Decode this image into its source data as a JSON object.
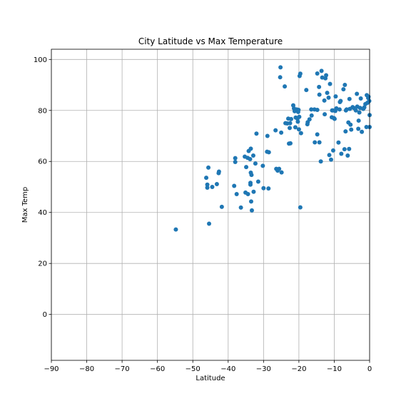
{
  "chart_data": {
    "type": "scatter",
    "title": "City Latitude vs Max Temperature",
    "xlabel": "Latitude",
    "ylabel": "Max Temp",
    "xlim": [
      -90,
      0
    ],
    "ylim": [
      -18,
      104
    ],
    "xticks": [
      -90,
      -80,
      -70,
      -60,
      -50,
      -40,
      -30,
      -20,
      -10,
      0
    ],
    "yticks": [
      0,
      20,
      40,
      60,
      80,
      100
    ],
    "xtick_labels": [
      "−90",
      "−80",
      "−70",
      "−60",
      "−50",
      "−40",
      "−30",
      "−20",
      "−10",
      "0"
    ],
    "ytick_labels": [
      "0",
      "20",
      "40",
      "60",
      "80",
      "100"
    ],
    "grid": true,
    "marker_color": "#1f77b4",
    "series": [
      {
        "points": [
          [
            -54.8,
            33.3
          ],
          [
            -46.2,
            53.6
          ],
          [
            -45.9,
            50.9
          ],
          [
            -45.9,
            49.7
          ],
          [
            -45.6,
            57.6
          ],
          [
            -45.4,
            35.6
          ],
          [
            -44.5,
            50.0
          ],
          [
            -43.2,
            51.1
          ],
          [
            -42.7,
            55.4
          ],
          [
            -42.6,
            56.0
          ],
          [
            -41.8,
            42.2
          ],
          [
            -38.3,
            50.4
          ],
          [
            -38.0,
            59.8
          ],
          [
            -38.0,
            61.3
          ],
          [
            -37.6,
            47.2
          ],
          [
            -36.4,
            41.9
          ],
          [
            -35.3,
            61.9
          ],
          [
            -35.1,
            47.8
          ],
          [
            -34.9,
            57.8
          ],
          [
            -34.5,
            61.4
          ],
          [
            -34.4,
            47.2
          ],
          [
            -34.2,
            64.1
          ],
          [
            -33.8,
            60.9
          ],
          [
            -33.7,
            51.6
          ],
          [
            -33.7,
            50.9
          ],
          [
            -33.6,
            55.6
          ],
          [
            -33.5,
            44.3
          ],
          [
            -33.4,
            54.7
          ],
          [
            -33.3,
            40.8
          ],
          [
            -33.6,
            65.0
          ],
          [
            -32.9,
            62.3
          ],
          [
            -32.8,
            48.1
          ],
          [
            -32.3,
            59.2
          ],
          [
            -32.0,
            70.9
          ],
          [
            -31.5,
            52.1
          ],
          [
            -30.2,
            58.3
          ],
          [
            -30.0,
            49.5
          ],
          [
            -29.0,
            63.8
          ],
          [
            -28.9,
            70.0
          ],
          [
            -28.6,
            49.4
          ],
          [
            -28.5,
            63.6
          ],
          [
            -26.6,
            72.2
          ],
          [
            -26.4,
            57.1
          ],
          [
            -26.0,
            56.4
          ],
          [
            -25.6,
            57.1
          ],
          [
            -25.3,
            93.0
          ],
          [
            -25.2,
            96.9
          ],
          [
            -25.0,
            71.3
          ],
          [
            -24.9,
            55.7
          ],
          [
            -24.0,
            89.4
          ],
          [
            -23.8,
            75.0
          ],
          [
            -23.3,
            74.9
          ],
          [
            -23.0,
            76.8
          ],
          [
            -22.8,
            67.0
          ],
          [
            -22.6,
            73.1
          ],
          [
            -22.5,
            75.0
          ],
          [
            -22.4,
            67.1
          ],
          [
            -22.2,
            76.6
          ],
          [
            -21.6,
            82.0
          ],
          [
            -21.4,
            80.8
          ],
          [
            -21.2,
            79.7
          ],
          [
            -21.0,
            73.4
          ],
          [
            -20.9,
            77.2
          ],
          [
            -20.6,
            80.4
          ],
          [
            -20.4,
            76.8
          ],
          [
            -20.3,
            75.6
          ],
          [
            -20.2,
            79.4
          ],
          [
            -20.1,
            80.2
          ],
          [
            -20.0,
            72.6
          ],
          [
            -19.9,
            77.5
          ],
          [
            -19.8,
            93.5
          ],
          [
            -19.6,
            94.4
          ],
          [
            -19.6,
            42.0
          ],
          [
            -19.4,
            71.1
          ],
          [
            -17.9,
            88.0
          ],
          [
            -17.6,
            74.6
          ],
          [
            -17.5,
            75.4
          ],
          [
            -17.0,
            76.5
          ],
          [
            -16.5,
            80.4
          ],
          [
            -16.4,
            78.0
          ],
          [
            -15.6,
            80.4
          ],
          [
            -15.5,
            67.5
          ],
          [
            -14.8,
            94.5
          ],
          [
            -14.8,
            80.2
          ],
          [
            -14.8,
            70.6
          ],
          [
            -14.3,
            89.2
          ],
          [
            -14.2,
            86.2
          ],
          [
            -14.2,
            67.5
          ],
          [
            -13.8,
            60.0
          ],
          [
            -13.6,
            95.5
          ],
          [
            -13.4,
            92.9
          ],
          [
            -12.8,
            83.9
          ],
          [
            -12.7,
            78.5
          ],
          [
            -12.5,
            92.6
          ],
          [
            -12.3,
            93.8
          ],
          [
            -12.0,
            86.9
          ],
          [
            -11.6,
            85.0
          ],
          [
            -11.4,
            62.5
          ],
          [
            -11.2,
            90.4
          ],
          [
            -10.9,
            60.7
          ],
          [
            -10.7,
            77.3
          ],
          [
            -10.6,
            80.0
          ],
          [
            -10.4,
            80.0
          ],
          [
            -10.3,
            64.3
          ],
          [
            -10.1,
            77.0
          ],
          [
            -9.9,
            76.7
          ],
          [
            -9.7,
            79.8
          ],
          [
            -9.6,
            85.5
          ],
          [
            -9.4,
            80.8
          ],
          [
            -8.8,
            67.4
          ],
          [
            -8.5,
            80.4
          ],
          [
            -8.4,
            83.3
          ],
          [
            -8.2,
            83.7
          ],
          [
            -8.0,
            63.0
          ],
          [
            -7.4,
            88.3
          ],
          [
            -7.1,
            64.8
          ],
          [
            -7.0,
            90.0
          ],
          [
            -6.8,
            71.8
          ],
          [
            -6.7,
            80.0
          ],
          [
            -6.5,
            80.4
          ],
          [
            -6.2,
            62.3
          ],
          [
            -6.0,
            75.3
          ],
          [
            -5.8,
            64.9
          ],
          [
            -5.7,
            84.5
          ],
          [
            -5.6,
            80.6
          ],
          [
            -5.4,
            74.4
          ],
          [
            -5.2,
            72.5
          ],
          [
            -4.8,
            81.3
          ],
          [
            -4.5,
            81.0
          ],
          [
            -3.9,
            80.0
          ],
          [
            -3.6,
            86.5
          ],
          [
            -3.5,
            81.5
          ],
          [
            -3.2,
            72.8
          ],
          [
            -3.1,
            76.0
          ],
          [
            -2.9,
            79.2
          ],
          [
            -2.7,
            81.0
          ],
          [
            -2.5,
            84.7
          ],
          [
            -2.2,
            71.6
          ],
          [
            -1.8,
            80.6
          ],
          [
            -1.5,
            81.2
          ],
          [
            -1.2,
            82.5
          ],
          [
            -0.9,
            73.5
          ],
          [
            -0.8,
            86.0
          ],
          [
            -0.6,
            83.0
          ],
          [
            -0.4,
            84.9
          ],
          [
            -0.3,
            85.4
          ],
          [
            -0.1,
            83.7
          ],
          [
            0.0,
            78.2
          ],
          [
            0.0,
            73.5
          ]
        ]
      }
    ]
  }
}
